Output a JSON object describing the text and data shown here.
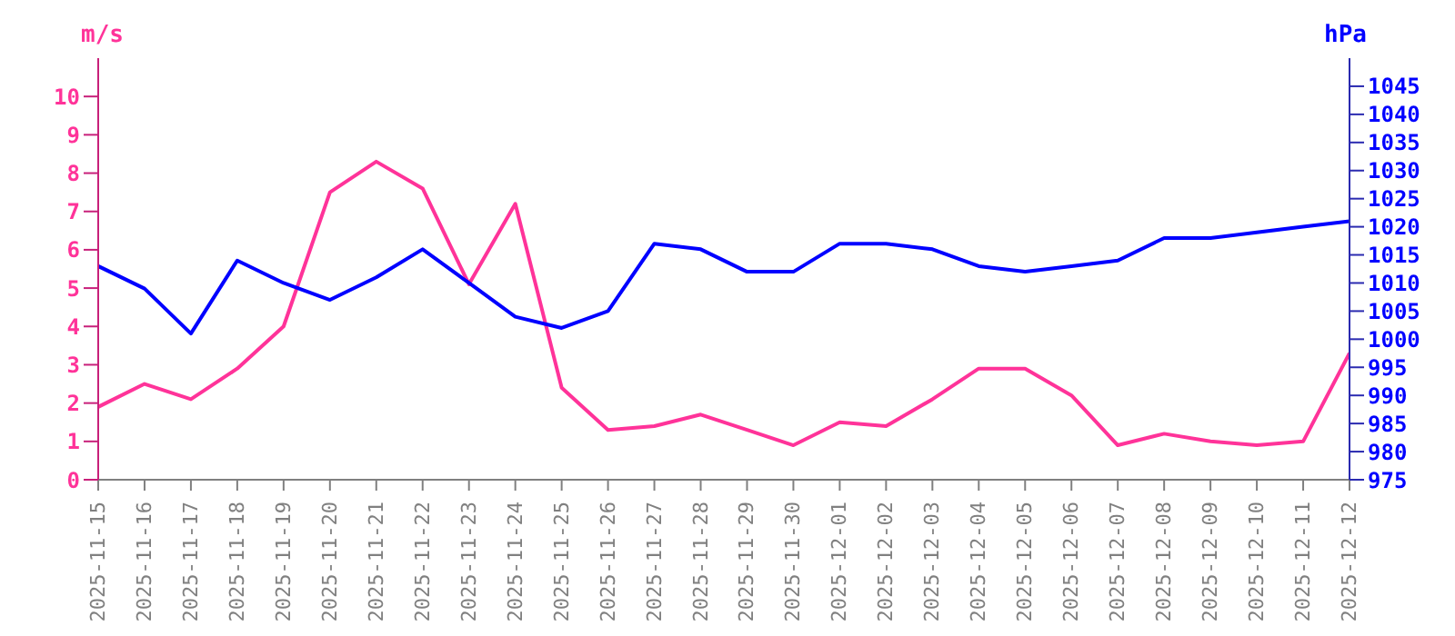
{
  "chart_data": {
    "type": "line",
    "ylabel": "m/s",
    "y2label": "hPa",
    "categories": [
      "2025-11-15",
      "2025-11-16",
      "2025-11-17",
      "2025-11-18",
      "2025-11-19",
      "2025-11-20",
      "2025-11-21",
      "2025-11-22",
      "2025-11-23",
      "2025-11-24",
      "2025-11-25",
      "2025-11-26",
      "2025-11-27",
      "2025-11-28",
      "2025-11-29",
      "2025-11-30",
      "2025-12-01",
      "2025-12-02",
      "2025-12-03",
      "2025-12-04",
      "2025-12-05",
      "2025-12-06",
      "2025-12-07",
      "2025-12-08",
      "2025-12-09",
      "2025-12-10",
      "2025-12-11",
      "2025-12-12"
    ],
    "series": [
      {
        "color": "#ff3399",
        "values": [
          1.9,
          2.5,
          2.1,
          2.9,
          4.0,
          7.5,
          8.3,
          7.6,
          5.1,
          7.2,
          2.4,
          1.3,
          1.4,
          1.7,
          1.3,
          0.9,
          1.5,
          1.4,
          2.1,
          2.9,
          2.9,
          2.2,
          0.9,
          1.2,
          1.0,
          0.9,
          1.0,
          3.3
        ]
      },
      {
        "color": "#0000ff",
        "axis": "y2",
        "values": [
          1013,
          1009,
          1001,
          1014,
          1010,
          1007,
          1011,
          1016,
          1010,
          1004,
          1002,
          1005,
          1017,
          1016,
          1012,
          1012,
          1017,
          1017,
          1016,
          1013,
          1012,
          1013,
          1014,
          1018,
          1018,
          1019,
          1020,
          1021
        ]
      }
    ],
    "ylim": [
      0,
      11
    ],
    "yticks": [
      0,
      1,
      2,
      3,
      4,
      5,
      6,
      7,
      8,
      9,
      10
    ],
    "y2lim": [
      975,
      1050
    ],
    "y2ticks": [
      975,
      980,
      985,
      990,
      995,
      1000,
      1005,
      1010,
      1015,
      1020,
      1025,
      1030,
      1035,
      1040,
      1045
    ],
    "marker": "none",
    "line_style": "solid"
  }
}
